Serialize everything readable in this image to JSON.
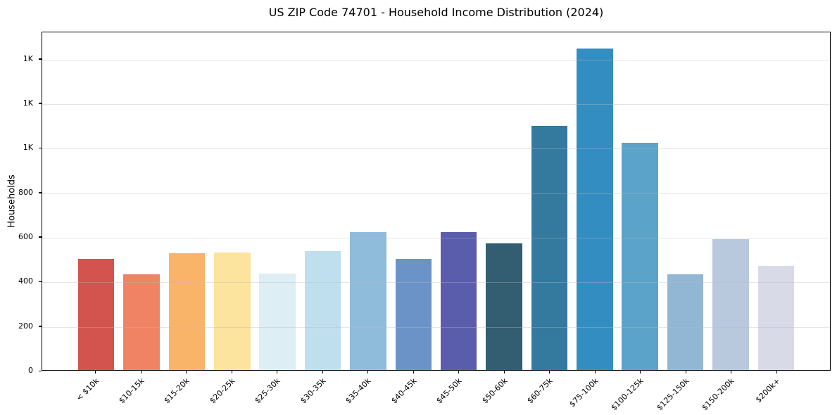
{
  "chart_data": {
    "type": "bar",
    "title": "US ZIP Code 74701 - Household Income Distribution (2024)",
    "xlabel": "",
    "ylabel": "Households",
    "categories": [
      "< $10k",
      "$10-15k",
      "$15-20k",
      "$20-25k",
      "$25-30k",
      "$30-35k",
      "$35-40k",
      "$40-45k",
      "$45-50k",
      "$50-60k",
      "$60-75k",
      "$75-100k",
      "$100-125k",
      "$125-150k",
      "$150-200k",
      "$200k+"
    ],
    "values": [
      500,
      430,
      525,
      530,
      435,
      535,
      620,
      500,
      620,
      570,
      1100,
      1450,
      1025,
      430,
      590,
      470
    ],
    "bar_colors": [
      "#d3534e",
      "#f08364",
      "#f9b469",
      "#fce39e",
      "#ddeef5",
      "#bfdfee",
      "#90bcdc",
      "#6b93c8",
      "#5a5dac",
      "#335d70",
      "#34799e",
      "#348dc1",
      "#5ba3c9",
      "#92b7d5",
      "#b8c8dd",
      "#d8dae7"
    ],
    "ylim": [
      0,
      1522
    ],
    "yticks": {
      "values": [
        0,
        200,
        400,
        600,
        800,
        1000,
        1200,
        1400
      ],
      "labels": [
        "0",
        "200",
        "400",
        "600",
        "800",
        "1K",
        "1K",
        "1K"
      ]
    },
    "grid": true,
    "legend_position": "none",
    "x_tick_rotation": 45,
    "frame": "full-box",
    "background_color": "#ffffff",
    "axis_color": "#000000"
  }
}
